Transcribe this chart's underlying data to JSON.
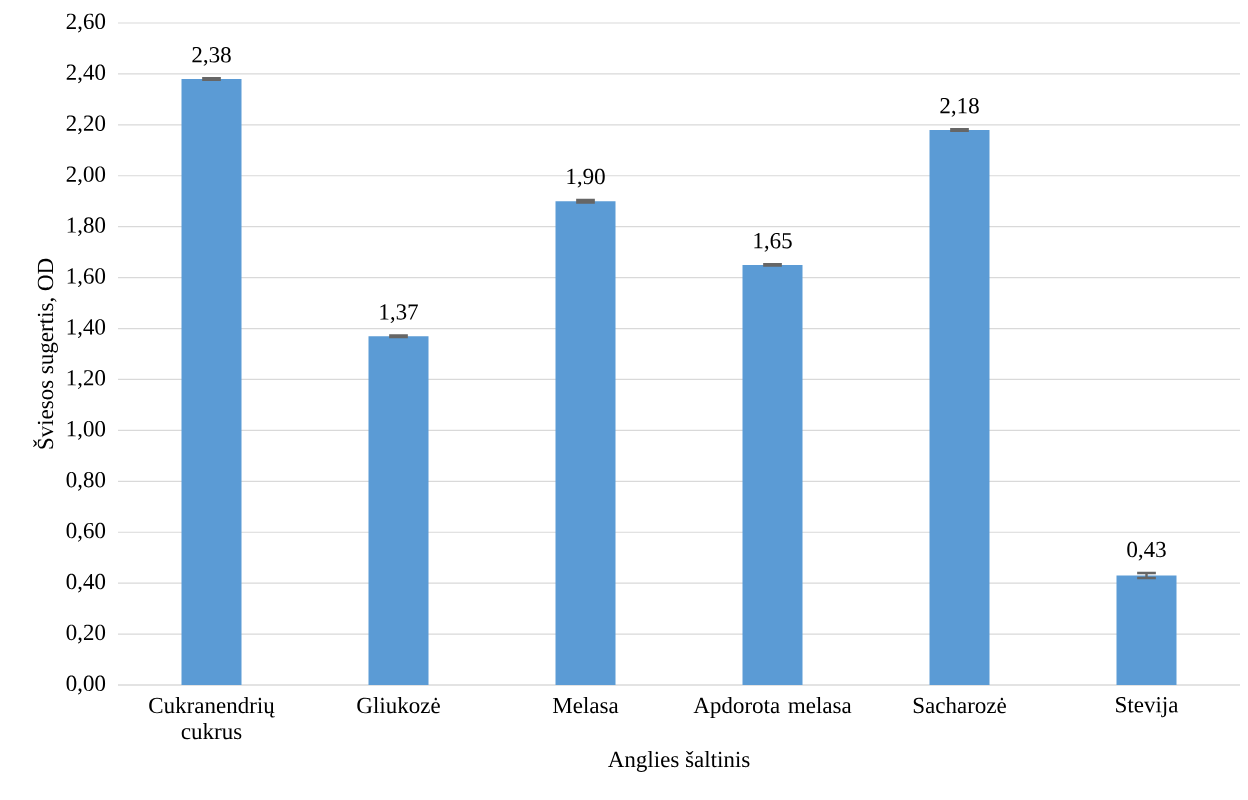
{
  "chart_data": {
    "type": "bar",
    "xlabel": "Anglies šaltinis",
    "ylabel": "Šviesos sugertis, OD",
    "categories": [
      "Cukranendrių cukrus",
      "Gliukozė",
      "Melasa",
      "Apdorota melasa",
      "Sacharozė",
      "Stevija"
    ],
    "values": [
      2.38,
      1.37,
      1.9,
      1.65,
      2.18,
      0.43
    ],
    "value_labels": [
      "2,38",
      "1,37",
      "1,90",
      "1,65",
      "2,18",
      "0,43"
    ],
    "errors": [
      0.003,
      0.003,
      0.005,
      0.003,
      0.003,
      0.01
    ],
    "color": "#5b9bd5",
    "ylim": [
      0,
      2.6
    ],
    "yticks": [
      {
        "value": 0,
        "label": "0,00"
      },
      {
        "value": 0.2,
        "label": "0,20"
      },
      {
        "value": 0.4,
        "label": "0,40"
      },
      {
        "value": 0.6,
        "label": "0,60"
      },
      {
        "value": 0.8,
        "label": "0,80"
      },
      {
        "value": 1.0,
        "label": "1,00"
      },
      {
        "value": 1.2,
        "label": "1,20"
      },
      {
        "value": 1.4,
        "label": "1,40"
      },
      {
        "value": 1.6,
        "label": "1,60"
      },
      {
        "value": 1.8,
        "label": "1,80"
      },
      {
        "value": 2.0,
        "label": "2,00"
      },
      {
        "value": 2.2,
        "label": "2,20"
      },
      {
        "value": 2.4,
        "label": "2,40"
      },
      {
        "value": 2.6,
        "label": "2,60"
      }
    ],
    "grid": "y"
  }
}
